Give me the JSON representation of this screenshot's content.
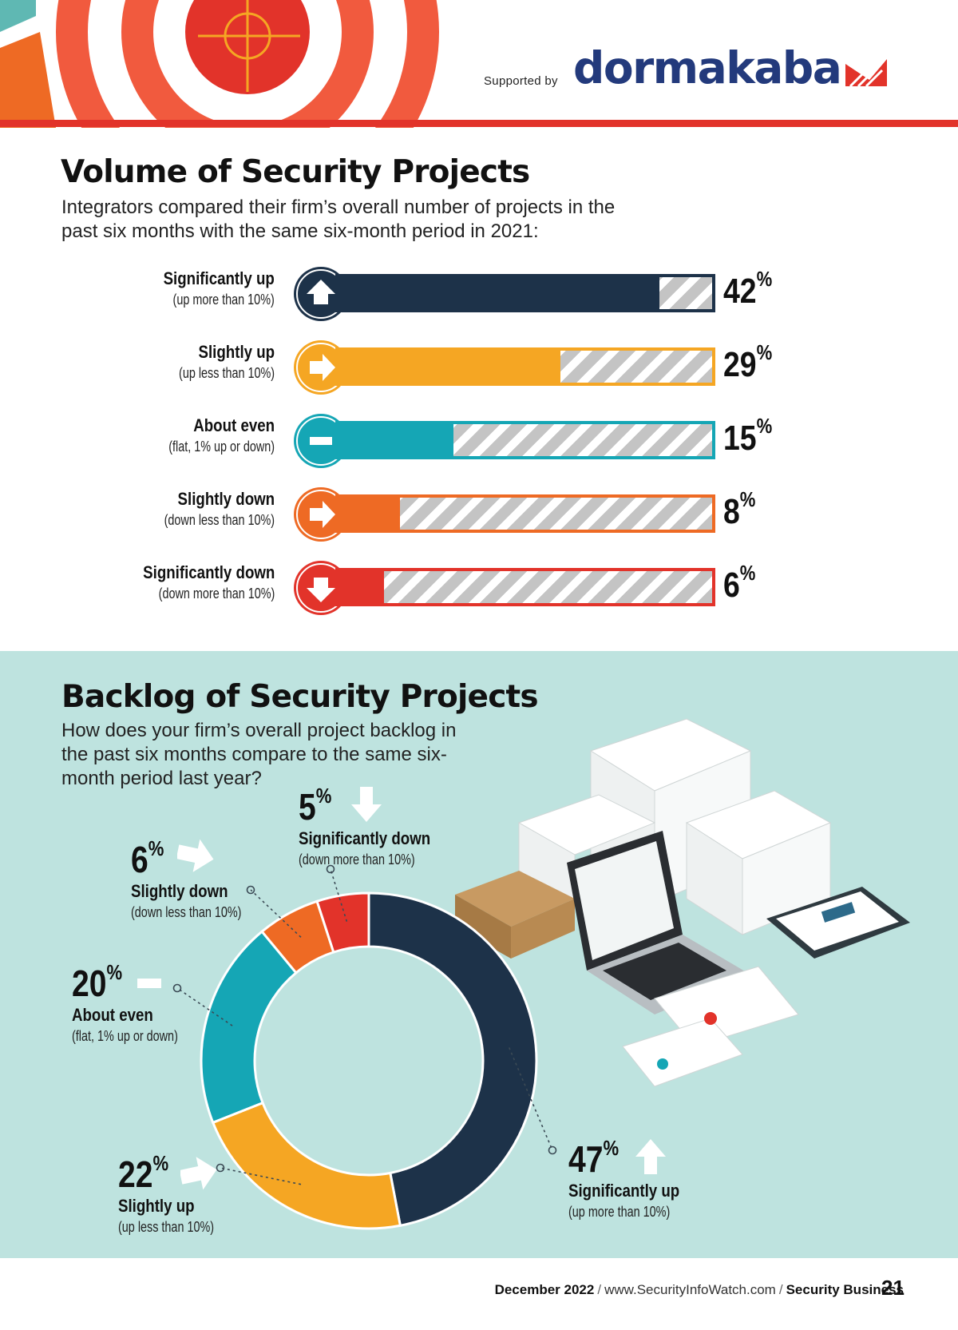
{
  "header": {
    "supported_by": "Supported by",
    "brand": "dormakaba",
    "colors": {
      "brand": "#233a7c",
      "rule": "#e2332a"
    }
  },
  "volume": {
    "title": "Volume of Security Projects",
    "subtitle": "Integrators compared their firm’s overall number of projects in the past six months with the same six-month period in 2021:",
    "rows": [
      {
        "label": "Significantly up",
        "desc": "(up more than 10%)",
        "value": "42",
        "unit": "%",
        "color": "#1d3249",
        "icon": "arrow-up-icon"
      },
      {
        "label": "Slightly up",
        "desc": "(up less than 10%)",
        "value": "29",
        "unit": "%",
        "color": "#f5a623",
        "icon": "arrow-right-icon"
      },
      {
        "label": "About even",
        "desc": "(flat, 1% up or down)",
        "value": "15",
        "unit": "%",
        "color": "#15a6b5",
        "icon": "minus-icon"
      },
      {
        "label": "Slightly down",
        "desc": "(down less than 10%)",
        "value": "8",
        "unit": "%",
        "color": "#ee6a24",
        "icon": "arrow-right-icon"
      },
      {
        "label": "Significantly down",
        "desc": "(down more than 10%)",
        "value": "6",
        "unit": "%",
        "color": "#e2332a",
        "icon": "arrow-down-icon"
      }
    ]
  },
  "backlog": {
    "title": "Backlog of Security Projects",
    "subtitle": "How does your firm’s overall project backlog in the past six months compare to the same six-month period last year?",
    "labels": {
      "sig_up": {
        "value": "47",
        "unit": "%",
        "name": "Significantly up",
        "desc": "(up more than 10%)"
      },
      "sl_up": {
        "value": "22",
        "unit": "%",
        "name": "Slightly up",
        "desc": "(up less than 10%)"
      },
      "even": {
        "value": "20",
        "unit": "%",
        "name": "About even",
        "desc": "(flat, 1% up or down)"
      },
      "sl_down": {
        "value": "6",
        "unit": "%",
        "name": "Slightly down",
        "desc": "(down less than 10%)"
      },
      "sig_down": {
        "value": "5",
        "unit": "%",
        "name": "Significantly down",
        "desc": "(down more than 10%)"
      }
    },
    "background": "#bee3df"
  },
  "chart_data": [
    {
      "type": "bar",
      "orientation": "horizontal",
      "title": "Volume of Security Projects",
      "categories": [
        "Significantly up",
        "Slightly up",
        "About even",
        "Slightly down",
        "Significantly down"
      ],
      "values": [
        42,
        29,
        15,
        8,
        6
      ],
      "unit": "%",
      "colors": [
        "#1d3249",
        "#f5a623",
        "#15a6b5",
        "#ee6a24",
        "#e2332a"
      ]
    },
    {
      "type": "pie",
      "subtype": "donut",
      "title": "Backlog of Security Projects",
      "categories": [
        "Significantly up",
        "Slightly up",
        "About even",
        "Slightly down",
        "Significantly down"
      ],
      "values": [
        47,
        22,
        20,
        6,
        5
      ],
      "unit": "%",
      "colors": [
        "#1d3249",
        "#f5a623",
        "#15a6b5",
        "#ee6a24",
        "#e2332a"
      ]
    }
  ],
  "footer": {
    "date": "December 2022",
    "url": "www.SecurityInfoWatch.com",
    "publication": "Security Business",
    "page": "21"
  }
}
